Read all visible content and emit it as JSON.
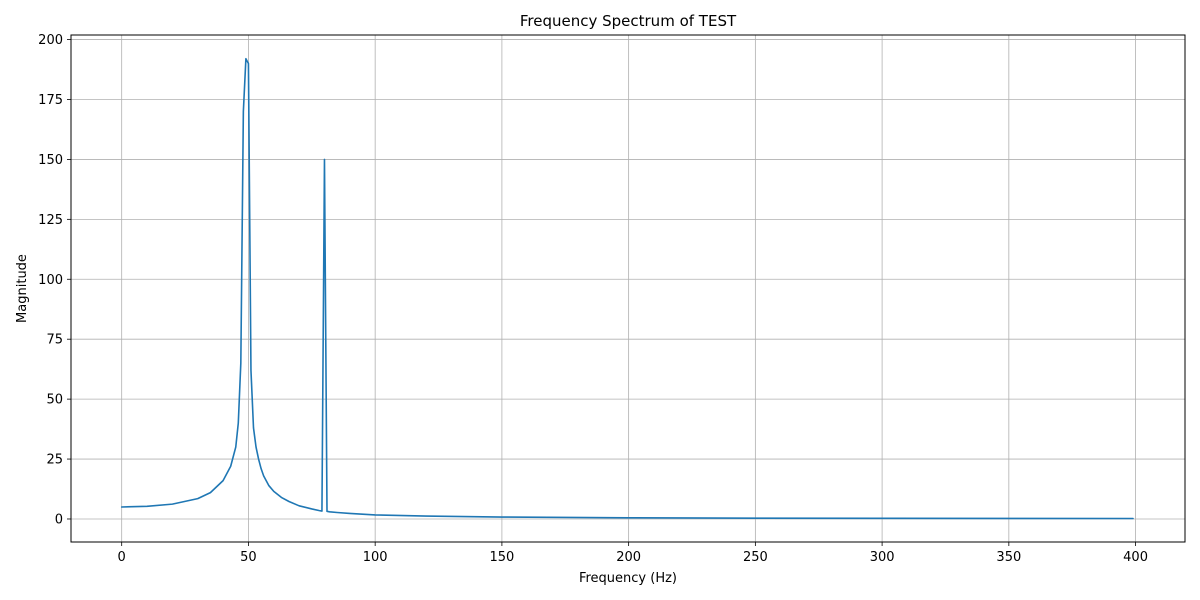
{
  "chart_data": {
    "type": "line",
    "title": "Frequency Spectrum of TEST",
    "xlabel": "Frequency (Hz)",
    "ylabel": "Magnitude",
    "xlim": [
      -20,
      419.5
    ],
    "ylim": [
      -9.6,
      201.9
    ],
    "xticks": [
      0,
      50,
      100,
      150,
      200,
      250,
      300,
      350,
      400
    ],
    "yticks": [
      0,
      25,
      50,
      75,
      100,
      125,
      150,
      175,
      200
    ],
    "grid": true,
    "series": [
      {
        "color": "#1f77b4",
        "x": [
          0,
          10,
          20,
          30,
          35,
          40,
          43,
          45,
          46,
          47,
          48,
          49,
          50,
          51,
          52,
          53,
          54,
          55,
          56,
          58,
          60,
          63,
          66,
          70,
          75,
          78,
          79,
          80,
          81,
          82,
          85,
          90,
          100,
          120,
          150,
          200,
          250,
          300,
          350,
          399
        ],
        "y": [
          5,
          5.3,
          6.2,
          8.5,
          11,
          16,
          22,
          30,
          40,
          65,
          170,
          192,
          190,
          62,
          38,
          30,
          25,
          21,
          18,
          14,
          11.5,
          9,
          7.3,
          5.5,
          4.2,
          3.5,
          3.3,
          150,
          3.2,
          3.0,
          2.7,
          2.3,
          1.7,
          1.2,
          0.8,
          0.5,
          0.35,
          0.28,
          0.22,
          0.2
        ]
      }
    ]
  }
}
